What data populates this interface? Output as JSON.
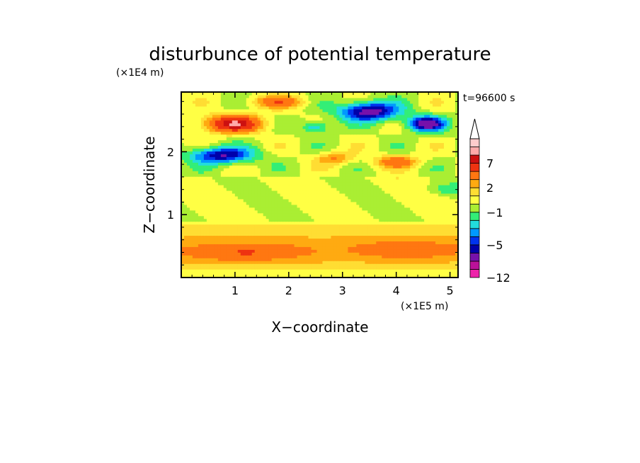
{
  "chart_data": {
    "type": "heatmap",
    "title": "disturbunce of potential temperature",
    "time_label": "t=96600 s",
    "xlabel": "X−coordinate",
    "ylabel": "Z−coordinate",
    "x_unit_label": "(×1E5 m)",
    "y_unit_label": "(×1E4 m)",
    "xlim": [
      0,
      5.15
    ],
    "ylim": [
      0,
      2.95
    ],
    "x_ticks": [
      1,
      2,
      3,
      4,
      5
    ],
    "x_tick_labels": [
      "1",
      "2",
      "3",
      "4",
      "5"
    ],
    "y_ticks": [
      1,
      2
    ],
    "y_tick_labels": [
      "1",
      "2"
    ],
    "colorbar": {
      "levels": [
        -12,
        -10,
        -8,
        -6,
        -5,
        -4,
        -3,
        -2,
        -1,
        0,
        1,
        2,
        3,
        5,
        7,
        8,
        9,
        10
      ],
      "colors": [
        "#ee22aa",
        "#bb1199",
        "#7711aa",
        "#0000aa",
        "#0033ee",
        "#0099ff",
        "#22dddd",
        "#33ee77",
        "#aaee33",
        "#ffff44",
        "#ffdd33",
        "#ffaa11",
        "#ff7711",
        "#ee3311",
        "#cc1111",
        "#ffaaaa",
        "#ffcccc"
      ],
      "labels": [
        {
          "value": 7,
          "text": "7"
        },
        {
          "value": 2,
          "text": "2"
        },
        {
          "value": -1,
          "text": "−1"
        },
        {
          "value": -5,
          "text": "−5"
        },
        {
          "value": -12,
          "text": "−12"
        }
      ],
      "extend": "max"
    },
    "features": [
      {
        "x": 0.95,
        "z": 2.45,
        "amp": 7.5,
        "sx": 0.55,
        "sz": 0.14
      },
      {
        "x": 0.75,
        "z": 1.95,
        "amp": -6.0,
        "sx": 0.6,
        "sz": 0.13
      },
      {
        "x": 3.5,
        "z": 2.65,
        "amp": -7.0,
        "sx": 0.55,
        "sz": 0.15
      },
      {
        "x": 4.55,
        "z": 2.45,
        "amp": -7.0,
        "sx": 0.35,
        "sz": 0.12
      },
      {
        "x": 2.5,
        "z": 2.4,
        "amp": -3.5,
        "sx": 0.25,
        "sz": 0.1
      },
      {
        "x": 4.0,
        "z": 1.85,
        "amp": 4.0,
        "sx": 0.4,
        "sz": 0.1
      },
      {
        "x": 2.85,
        "z": 1.9,
        "amp": 3.0,
        "sx": 0.35,
        "sz": 0.1
      },
      {
        "x": 1.8,
        "z": 2.8,
        "amp": 4.0,
        "sx": 0.5,
        "sz": 0.1
      },
      {
        "x": 4.9,
        "z": 1.4,
        "amp": -1.5,
        "sx": 0.4,
        "sz": 0.1
      },
      {
        "x": 1.2,
        "z": 0.4,
        "amp": 2.5,
        "sx": 0.9,
        "sz": 0.12
      },
      {
        "x": 4.2,
        "z": 0.45,
        "amp": 2.0,
        "sx": 0.8,
        "sz": 0.12
      }
    ]
  }
}
